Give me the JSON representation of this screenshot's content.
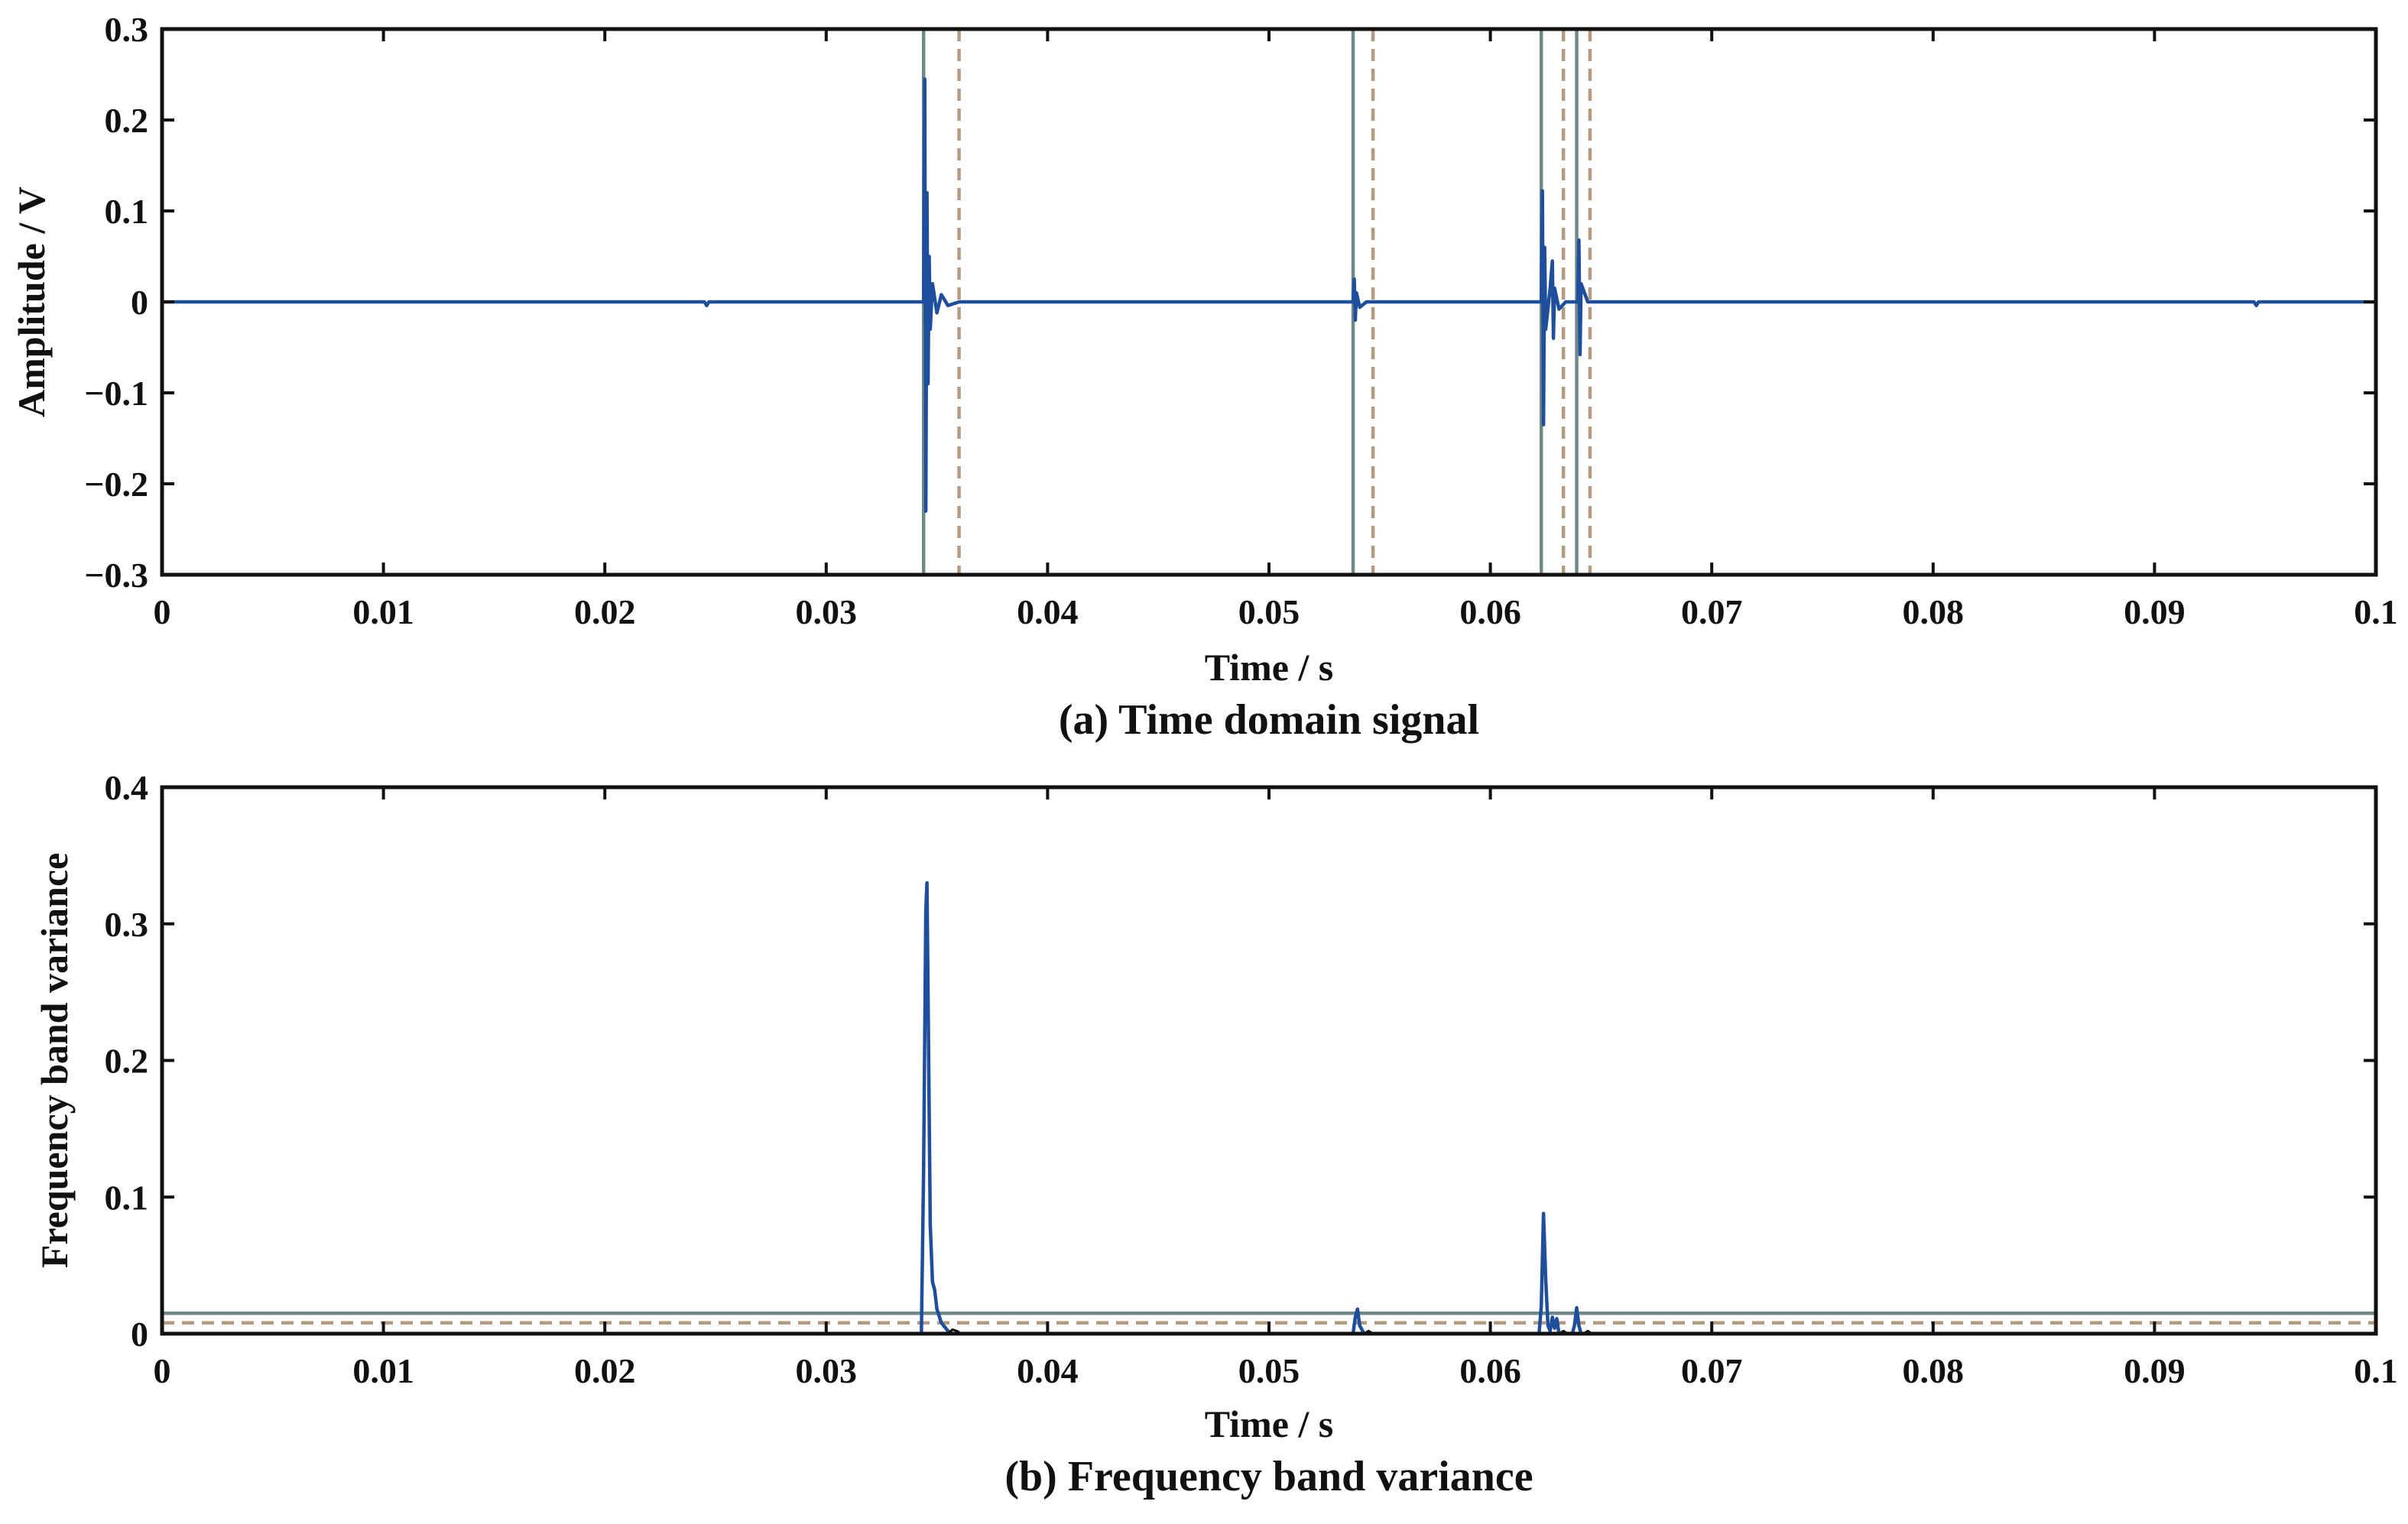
{
  "figure": {
    "colors": {
      "signal": "#1f4e9c",
      "onset_line": "#6f8a86",
      "offset_line": "#b39a82",
      "axis": "#111111"
    }
  },
  "chart_data": [
    {
      "type": "line",
      "caption": "(a) Time domain signal",
      "xlabel": "Time / s",
      "ylabel": "Amplitude / V",
      "xlim": [
        0,
        0.1
      ],
      "ylim": [
        -0.3,
        0.3
      ],
      "xticks": [
        0,
        0.01,
        0.02,
        0.03,
        0.04,
        0.05,
        0.06,
        0.07,
        0.08,
        0.09,
        0.1
      ],
      "xtick_labels": [
        "0",
        "0.01",
        "0.02",
        "0.03",
        "0.04",
        "0.05",
        "0.06",
        "0.07",
        "0.08",
        "0.09",
        "0.1"
      ],
      "yticks": [
        -0.3,
        -0.2,
        -0.1,
        0,
        0.1,
        0.2,
        0.3
      ],
      "ytick_labels": [
        "−0.3",
        "−0.2",
        "−0.1",
        "0",
        "0.1",
        "0.2",
        "0.3"
      ],
      "grid": false,
      "series": [
        {
          "style": "solid-blue",
          "x": [
            0,
            0.0245,
            0.0246,
            0.0247,
            0.0344,
            0.03445,
            0.0345,
            0.03455,
            0.0346,
            0.03465,
            0.0347,
            0.0348,
            0.035,
            0.0352,
            0.0355,
            0.036,
            0.0538,
            0.05385,
            0.0539,
            0.05395,
            0.0541,
            0.0544,
            0.0623,
            0.06235,
            0.0624,
            0.06245,
            0.0625,
            0.0627,
            0.0628,
            0.06285,
            0.0629,
            0.0631,
            0.0634,
            0.06395,
            0.064,
            0.06405,
            0.0641,
            0.0644,
            0.0945,
            0.0946,
            0.0947,
            0.1
          ],
          "y": [
            0,
            0,
            -0.004,
            0,
            0,
            0.245,
            -0.23,
            0.12,
            -0.09,
            0.05,
            -0.03,
            0.02,
            -0.012,
            0.008,
            -0.004,
            0,
            0,
            0.025,
            -0.02,
            0.01,
            -0.006,
            0,
            0,
            0.122,
            -0.135,
            0.06,
            -0.03,
            0.015,
            0.045,
            -0.04,
            0.015,
            -0.008,
            0,
            0,
            0.068,
            -0.058,
            0.02,
            0,
            0,
            -0.004,
            0,
            0
          ]
        }
      ],
      "vertical_lines": [
        {
          "x": 0.0344,
          "style": "solid"
        },
        {
          "x": 0.036,
          "style": "dashed"
        },
        {
          "x": 0.0538,
          "style": "solid"
        },
        {
          "x": 0.0547,
          "style": "dashed"
        },
        {
          "x": 0.0623,
          "style": "solid"
        },
        {
          "x": 0.0633,
          "style": "dashed"
        },
        {
          "x": 0.0639,
          "style": "solid"
        },
        {
          "x": 0.0645,
          "style": "dashed"
        }
      ]
    },
    {
      "type": "line",
      "caption": "(b) Frequency band variance",
      "xlabel": "Time / s",
      "ylabel": "Frequency band variance",
      "xlim": [
        0,
        0.1
      ],
      "ylim": [
        0,
        0.4
      ],
      "xticks": [
        0,
        0.01,
        0.02,
        0.03,
        0.04,
        0.05,
        0.06,
        0.07,
        0.08,
        0.09,
        0.1
      ],
      "xtick_labels": [
        "0",
        "0.01",
        "0.02",
        "0.03",
        "0.04",
        "0.05",
        "0.06",
        "0.07",
        "0.08",
        "0.09",
        "0.1"
      ],
      "yticks": [
        0,
        0.1,
        0.2,
        0.3,
        0.4
      ],
      "ytick_labels": [
        "0",
        "0.1",
        "0.2",
        "0.3",
        "0.4"
      ],
      "grid": false,
      "series": [
        {
          "style": "solid-blue",
          "x": [
            0,
            0.0343,
            0.0344,
            0.0345,
            0.03455,
            0.0346,
            0.0347,
            0.0348,
            0.0349,
            0.035,
            0.0352,
            0.0355,
            0.0357,
            0.0538,
            0.0539,
            0.054,
            0.0541,
            0.0543,
            0.0622,
            0.0623,
            0.0624,
            0.0625,
            0.0626,
            0.0627,
            0.0628,
            0.0629,
            0.063,
            0.0631,
            0.0637,
            0.0638,
            0.0639,
            0.064,
            0.0641,
            0.1
          ],
          "y": [
            0,
            0,
            0.12,
            0.31,
            0.33,
            0.25,
            0.08,
            0.038,
            0.032,
            0.018,
            0.008,
            0.002,
            0,
            0,
            0.012,
            0.018,
            0.006,
            0,
            0,
            0.02,
            0.088,
            0.04,
            0.006,
            0.002,
            0.012,
            0.004,
            0.011,
            0,
            0,
            0.006,
            0.019,
            0.006,
            0,
            0
          ]
        },
        {
          "style": "thin-black",
          "x": [
            0,
            0.0355,
            0.0357,
            0.0359,
            0.0361,
            0.0543,
            0.0545,
            0.0547,
            0.0631,
            0.0633,
            0.0635,
            0.0642,
            0.0644,
            0.0646,
            0.1
          ],
          "y": [
            0,
            0,
            0.003,
            0.002,
            0,
            0,
            0.002,
            0,
            0,
            0.002,
            0,
            0,
            0.002,
            0,
            0
          ]
        }
      ],
      "horizontal_lines": [
        {
          "y": 0.015,
          "style": "solid"
        },
        {
          "y": 0.008,
          "style": "dashed"
        }
      ]
    }
  ]
}
